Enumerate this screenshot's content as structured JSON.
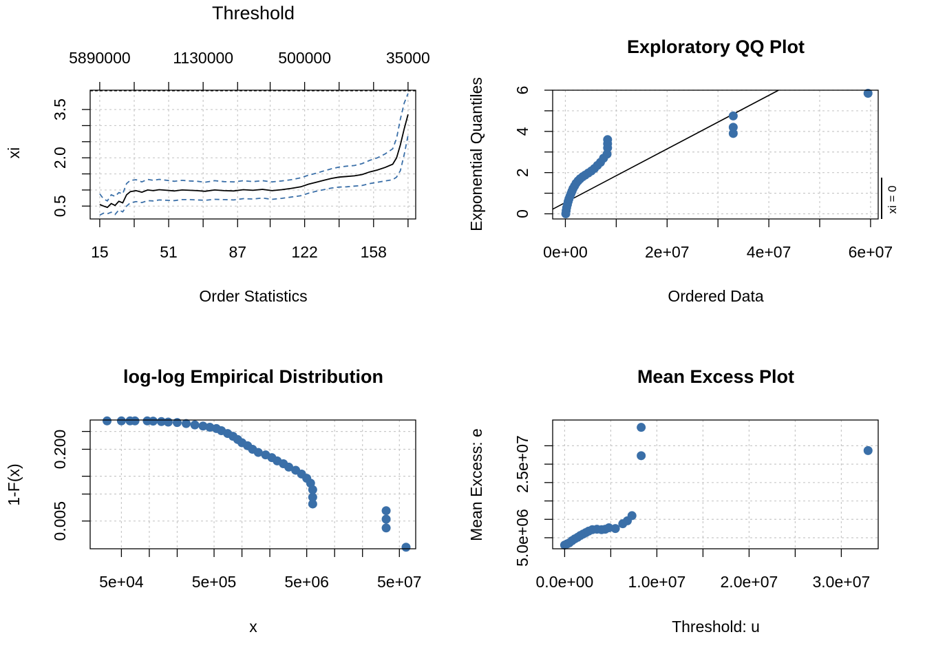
{
  "colors": {
    "points": "#3a6fa8",
    "line": "#000000",
    "ci": "#3a6fa8",
    "grid": "#c8c8c8"
  },
  "chart_data": [
    {
      "type": "line",
      "title": "Threshold",
      "xlabel": "Order Statistics",
      "ylabel": "xi",
      "xlim": [
        10,
        180
      ],
      "ylim": [
        0.1,
        4.1
      ],
      "x_ticks": [
        15,
        51,
        87,
        122,
        158
      ],
      "y_ticks": [
        0.5,
        2.0,
        3.5
      ],
      "y_tick_labels": [
        "0.5",
        "2.0",
        "3.5"
      ],
      "top_ticks": [
        "5890000",
        "1130000",
        "500000",
        "35000"
      ],
      "grid": true,
      "series": [
        {
          "role": "estimate",
          "x": [
            15,
            17,
            19,
            21,
            23,
            25,
            27,
            29,
            31,
            34,
            37,
            40,
            43,
            46,
            50,
            54,
            58,
            62,
            66,
            70,
            75,
            80,
            85,
            90,
            95,
            100,
            105,
            110,
            115,
            120,
            124,
            128,
            132,
            136,
            140,
            144,
            148,
            152,
            156,
            160,
            164,
            168,
            170,
            172,
            174,
            176
          ],
          "y": [
            0.55,
            0.5,
            0.46,
            0.58,
            0.52,
            0.65,
            0.6,
            0.85,
            0.95,
            0.98,
            0.93,
            1.0,
            0.98,
            1.01,
            0.99,
            0.97,
            1.0,
            0.99,
            0.98,
            0.96,
            1.0,
            0.98,
            0.97,
            1.01,
            0.99,
            1.02,
            0.98,
            1.01,
            1.05,
            1.1,
            1.18,
            1.24,
            1.3,
            1.36,
            1.4,
            1.42,
            1.44,
            1.48,
            1.56,
            1.62,
            1.7,
            1.8,
            2.0,
            2.4,
            2.9,
            3.35
          ]
        },
        {
          "role": "upper-ci",
          "x": [
            15,
            17,
            19,
            21,
            23,
            25,
            27,
            29,
            31,
            34,
            37,
            40,
            43,
            46,
            50,
            54,
            58,
            62,
            66,
            70,
            75,
            80,
            85,
            90,
            95,
            100,
            105,
            110,
            115,
            120,
            124,
            128,
            132,
            136,
            140,
            144,
            148,
            152,
            156,
            160,
            164,
            168,
            170,
            172,
            174,
            176
          ],
          "y": [
            0.88,
            0.72,
            0.66,
            0.85,
            0.8,
            0.92,
            0.88,
            1.2,
            1.3,
            1.32,
            1.25,
            1.33,
            1.3,
            1.33,
            1.3,
            1.27,
            1.3,
            1.28,
            1.27,
            1.24,
            1.29,
            1.26,
            1.25,
            1.29,
            1.26,
            1.29,
            1.25,
            1.28,
            1.32,
            1.38,
            1.46,
            1.52,
            1.59,
            1.66,
            1.71,
            1.74,
            1.76,
            1.82,
            1.92,
            2.0,
            2.12,
            2.28,
            2.6,
            3.2,
            3.7,
            4.0
          ]
        },
        {
          "role": "lower-ci",
          "x": [
            15,
            17,
            19,
            21,
            23,
            25,
            27,
            29,
            31,
            34,
            37,
            40,
            43,
            46,
            50,
            54,
            58,
            62,
            66,
            70,
            75,
            80,
            85,
            90,
            95,
            100,
            105,
            110,
            115,
            120,
            124,
            128,
            132,
            136,
            140,
            144,
            148,
            152,
            156,
            160,
            164,
            168,
            170,
            172,
            174,
            176
          ],
          "y": [
            0.22,
            0.28,
            0.26,
            0.31,
            0.24,
            0.38,
            0.32,
            0.5,
            0.6,
            0.64,
            0.61,
            0.67,
            0.66,
            0.69,
            0.68,
            0.67,
            0.7,
            0.7,
            0.69,
            0.68,
            0.71,
            0.7,
            0.69,
            0.73,
            0.72,
            0.75,
            0.71,
            0.74,
            0.78,
            0.82,
            0.9,
            0.96,
            1.01,
            1.06,
            1.09,
            1.1,
            1.12,
            1.14,
            1.2,
            1.24,
            1.28,
            1.32,
            1.4,
            1.6,
            2.1,
            2.7
          ]
        }
      ]
    },
    {
      "type": "scatter",
      "title": "Exploratory QQ Plot",
      "xlabel": "Ordered Data",
      "ylabel": "Exponential Quantiles",
      "side_label": "xi = 0",
      "xlim": [
        -2500000,
        61500000
      ],
      "ylim": [
        -0.25,
        6.0
      ],
      "x_ticks": [
        0,
        20000000,
        40000000,
        60000000
      ],
      "x_tick_labels": [
        "0e+00",
        "2e+07",
        "4e+07",
        "6e+07"
      ],
      "y_ticks": [
        0,
        2,
        4,
        6
      ],
      "y_tick_labels": [
        "0",
        "2",
        "4",
        "6"
      ],
      "grid": true,
      "reference_line": {
        "intercept": 0.55,
        "slope": 1.3e-07
      },
      "points": {
        "x": [
          80000,
          150000,
          250000,
          400000,
          550000,
          700000,
          900000,
          1100000,
          1300000,
          1500000,
          1800000,
          2100000,
          2500000,
          2900000,
          3400000,
          3900000,
          4500000,
          5100000,
          5700000,
          6300000,
          6900000,
          7500000,
          8200000,
          8300000,
          8300000,
          8300000,
          33000000,
          33000000,
          33000000,
          59500000
        ],
        "y": [
          0.0,
          0.15,
          0.3,
          0.45,
          0.6,
          0.72,
          0.85,
          0.98,
          1.1,
          1.22,
          1.35,
          1.48,
          1.6,
          1.7,
          1.8,
          1.88,
          1.98,
          2.08,
          2.2,
          2.35,
          2.5,
          2.7,
          2.9,
          3.2,
          3.4,
          3.6,
          3.9,
          4.2,
          4.75,
          5.85
        ]
      }
    },
    {
      "type": "scatter",
      "title": "log-log Empirical Distribution",
      "xlabel": "x",
      "ylabel": "1-F(x)",
      "log_scale": "xy",
      "xlim": [
        23000,
        75000000
      ],
      "ylim": [
        0.0012,
        0.9
      ],
      "x_ticks": [
        50000,
        500000,
        5000000,
        50000000
      ],
      "x_tick_labels": [
        "5e+04",
        "5e+05",
        "5e+06",
        "5e+07"
      ],
      "y_ticks": [
        0.005,
        0.2
      ],
      "y_tick_labels": [
        "0.005",
        "0.200"
      ],
      "grid": true,
      "points": {
        "x": [
          35000,
          50000,
          62000,
          70000,
          95000,
          110000,
          135000,
          160000,
          200000,
          250000,
          310000,
          380000,
          450000,
          530000,
          600000,
          700000,
          800000,
          900000,
          1000000,
          1150000,
          1300000,
          1500000,
          1800000,
          2100000,
          2400000,
          2800000,
          3200000,
          3800000,
          4400000,
          5000000,
          5500000,
          5800000,
          5800000,
          5800000,
          36000000,
          36000000,
          36000000,
          59000000
        ],
        "y": [
          0.86,
          0.86,
          0.86,
          0.86,
          0.86,
          0.85,
          0.83,
          0.81,
          0.79,
          0.75,
          0.7,
          0.66,
          0.62,
          0.58,
          0.52,
          0.45,
          0.39,
          0.33,
          0.28,
          0.24,
          0.2,
          0.17,
          0.15,
          0.13,
          0.11,
          0.095,
          0.08,
          0.068,
          0.056,
          0.045,
          0.035,
          0.025,
          0.017,
          0.012,
          0.0085,
          0.0055,
          0.0035,
          0.0013
        ]
      }
    },
    {
      "type": "scatter",
      "title": "Mean Excess Plot",
      "xlabel": "Threshold: u",
      "ylabel": "Mean Excess: e",
      "xlim": [
        -1300000,
        34000000
      ],
      "ylim": [
        2000000,
        37000000
      ],
      "x_ticks": [
        0,
        10000000,
        20000000,
        30000000
      ],
      "x_tick_labels": [
        "0.0e+00",
        "1.0e+07",
        "2.0e+07",
        "3.0e+07"
      ],
      "y_ticks": [
        5000000,
        25000000
      ],
      "y_tick_labels": [
        "5.0e+06",
        "2.5e+07"
      ],
      "grid": true,
      "points": {
        "x": [
          0,
          250000,
          500000,
          800000,
          1100000,
          1400000,
          1700000,
          2000000,
          2300000,
          2600000,
          3000000,
          3500000,
          4000000,
          4400000,
          4800000,
          5500000,
          6300000,
          6800000,
          7300000,
          8300000,
          8300000,
          32900000
        ],
        "y": [
          3000000,
          3300000,
          3600000,
          4200000,
          4700000,
          5100000,
          5600000,
          6000000,
          6400000,
          6800000,
          7200000,
          7300000,
          7200000,
          7300000,
          7700000,
          7500000,
          8800000,
          9600000,
          11000000,
          27300000,
          35000000,
          28700000
        ]
      }
    }
  ]
}
